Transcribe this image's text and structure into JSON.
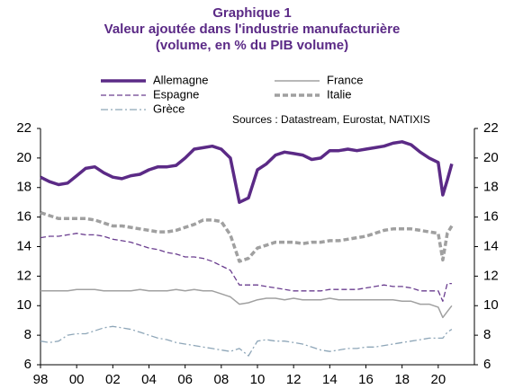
{
  "chart_data": {
    "type": "line",
    "title": "Graphique 1",
    "subtitle": [
      "Valeur ajoutée dans l'industrie manufacturière",
      "(volume, en % du PIB volume)"
    ],
    "annotation": "Sources : Datastream, Eurostat, NATIXIS",
    "x": [
      1998,
      1998.5,
      1999,
      1999.5,
      2000,
      2000.5,
      2001,
      2001.5,
      2002,
      2002.5,
      2003,
      2003.5,
      2004,
      2004.5,
      2005,
      2005.5,
      2006,
      2006.5,
      2007,
      2007.5,
      2008,
      2008.5,
      2009,
      2009.5,
      2010,
      2010.5,
      2011,
      2011.5,
      2012,
      2012.5,
      2013,
      2013.5,
      2014,
      2014.5,
      2015,
      2015.5,
      2016,
      2016.5,
      2017,
      2017.5,
      2018,
      2018.5,
      2019,
      2019.5,
      2020,
      2020.25,
      2020.5,
      2020.75
    ],
    "series": [
      {
        "name": "Allemagne",
        "color": "#5b2a86",
        "width": 3.5,
        "dash": "solid",
        "values": [
          18.7,
          18.4,
          18.2,
          18.3,
          18.8,
          19.3,
          19.4,
          19.0,
          18.7,
          18.6,
          18.8,
          18.9,
          19.2,
          19.4,
          19.4,
          19.5,
          20.0,
          20.6,
          20.7,
          20.8,
          20.6,
          20.0,
          17.0,
          17.3,
          19.2,
          19.6,
          20.2,
          20.4,
          20.3,
          20.2,
          19.9,
          20.0,
          20.5,
          20.5,
          20.6,
          20.5,
          20.6,
          20.7,
          20.8,
          21.0,
          21.1,
          20.9,
          20.4,
          20.0,
          19.7,
          17.5,
          18.5,
          19.6
        ]
      },
      {
        "name": "France",
        "color": "#a0a0a0",
        "width": 1.5,
        "dash": "solid",
        "values": [
          11.0,
          11.0,
          11.0,
          11.0,
          11.1,
          11.1,
          11.1,
          11.0,
          11.0,
          11.0,
          11.0,
          11.1,
          11.0,
          11.0,
          11.0,
          11.1,
          11.0,
          11.1,
          11.0,
          11.0,
          10.8,
          10.6,
          10.1,
          10.2,
          10.4,
          10.5,
          10.5,
          10.4,
          10.5,
          10.4,
          10.4,
          10.4,
          10.5,
          10.4,
          10.4,
          10.4,
          10.4,
          10.4,
          10.4,
          10.4,
          10.3,
          10.3,
          10.1,
          10.1,
          9.9,
          9.2,
          9.6,
          10.0
        ]
      },
      {
        "name": "Espagne",
        "color": "#6a3d8f",
        "width": 1.3,
        "dash": "dashed",
        "values": [
          14.6,
          14.7,
          14.7,
          14.8,
          14.9,
          14.8,
          14.8,
          14.7,
          14.5,
          14.4,
          14.3,
          14.1,
          13.9,
          13.8,
          13.6,
          13.5,
          13.3,
          13.3,
          13.2,
          13.0,
          12.7,
          12.4,
          11.4,
          11.4,
          11.4,
          11.3,
          11.2,
          11.1,
          11.0,
          11.0,
          11.0,
          11.0,
          11.1,
          11.1,
          11.1,
          11.1,
          11.2,
          11.3,
          11.4,
          11.3,
          11.3,
          11.2,
          11.0,
          11.0,
          11.0,
          10.3,
          11.5,
          11.5
        ]
      },
      {
        "name": "Italie",
        "color": "#a0a0a0",
        "width": 3.5,
        "dash": "dashed",
        "values": [
          16.3,
          16.1,
          15.9,
          15.9,
          15.9,
          15.9,
          15.8,
          15.6,
          15.4,
          15.4,
          15.3,
          15.2,
          15.1,
          15.0,
          15.0,
          15.1,
          15.3,
          15.5,
          15.8,
          15.8,
          15.7,
          14.8,
          13.0,
          13.2,
          13.9,
          14.1,
          14.3,
          14.3,
          14.3,
          14.2,
          14.3,
          14.3,
          14.4,
          14.4,
          14.5,
          14.6,
          14.7,
          14.9,
          15.1,
          15.2,
          15.2,
          15.2,
          15.1,
          15.0,
          14.9,
          13.1,
          14.9,
          15.4
        ]
      },
      {
        "name": "Grèce",
        "color": "#8ea6b8",
        "width": 1.3,
        "dash": "dashdot",
        "values": [
          7.6,
          7.5,
          7.6,
          8.0,
          8.1,
          8.1,
          8.3,
          8.5,
          8.6,
          8.5,
          8.4,
          8.2,
          8.0,
          7.8,
          7.7,
          7.5,
          7.4,
          7.3,
          7.2,
          7.1,
          7.0,
          6.9,
          7.1,
          6.6,
          7.6,
          7.7,
          7.6,
          7.6,
          7.5,
          7.4,
          7.2,
          7.0,
          6.9,
          7.0,
          7.1,
          7.1,
          7.2,
          7.2,
          7.3,
          7.4,
          7.5,
          7.6,
          7.7,
          7.8,
          7.8,
          7.8,
          8.2,
          8.4
        ]
      }
    ],
    "xlim": [
      1998,
      2022
    ],
    "xticks": [
      {
        "value": 1998,
        "label": "98"
      },
      {
        "value": 2000,
        "label": "00"
      },
      {
        "value": 2002,
        "label": "02"
      },
      {
        "value": 2004,
        "label": "04"
      },
      {
        "value": 2006,
        "label": "06"
      },
      {
        "value": 2008,
        "label": "08"
      },
      {
        "value": 2010,
        "label": "10"
      },
      {
        "value": 2012,
        "label": "12"
      },
      {
        "value": 2014,
        "label": "14"
      },
      {
        "value": 2016,
        "label": "16"
      },
      {
        "value": 2018,
        "label": "18"
      },
      {
        "value": 2020,
        "label": "20"
      }
    ],
    "ylim": [
      6,
      22
    ],
    "yticks": [
      6,
      8,
      10,
      12,
      14,
      16,
      18,
      20,
      22
    ],
    "y2lim": [
      6,
      22
    ],
    "y2ticks": [
      6,
      8,
      10,
      12,
      14,
      16,
      18,
      20,
      22
    ],
    "grid": false
  }
}
